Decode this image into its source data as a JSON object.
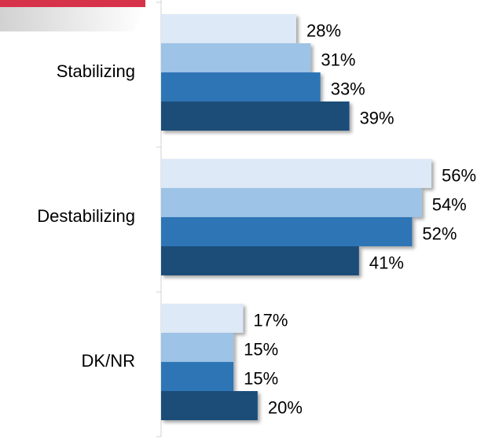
{
  "chart_data": {
    "type": "bar",
    "orientation": "horizontal",
    "categories": [
      "Stabilizing",
      "Destabilizing",
      "DK/NR"
    ],
    "series": [
      {
        "color": "#dde9f6",
        "values": [
          28,
          56,
          17
        ],
        "value_labels": [
          "28%",
          "56%",
          "17%"
        ]
      },
      {
        "color": "#9dc3e6",
        "values": [
          31,
          54,
          15
        ],
        "value_labels": [
          "31%",
          "54%",
          "15%"
        ]
      },
      {
        "color": "#2e75b6",
        "values": [
          33,
          52,
          15
        ],
        "value_labels": [
          "33%",
          "52%",
          "15%"
        ]
      },
      {
        "color": "#1f4e79",
        "values": [
          39,
          41,
          20
        ],
        "value_labels": [
          "39%",
          "41%",
          "20%"
        ]
      }
    ],
    "xlim": [
      0,
      70
    ]
  }
}
